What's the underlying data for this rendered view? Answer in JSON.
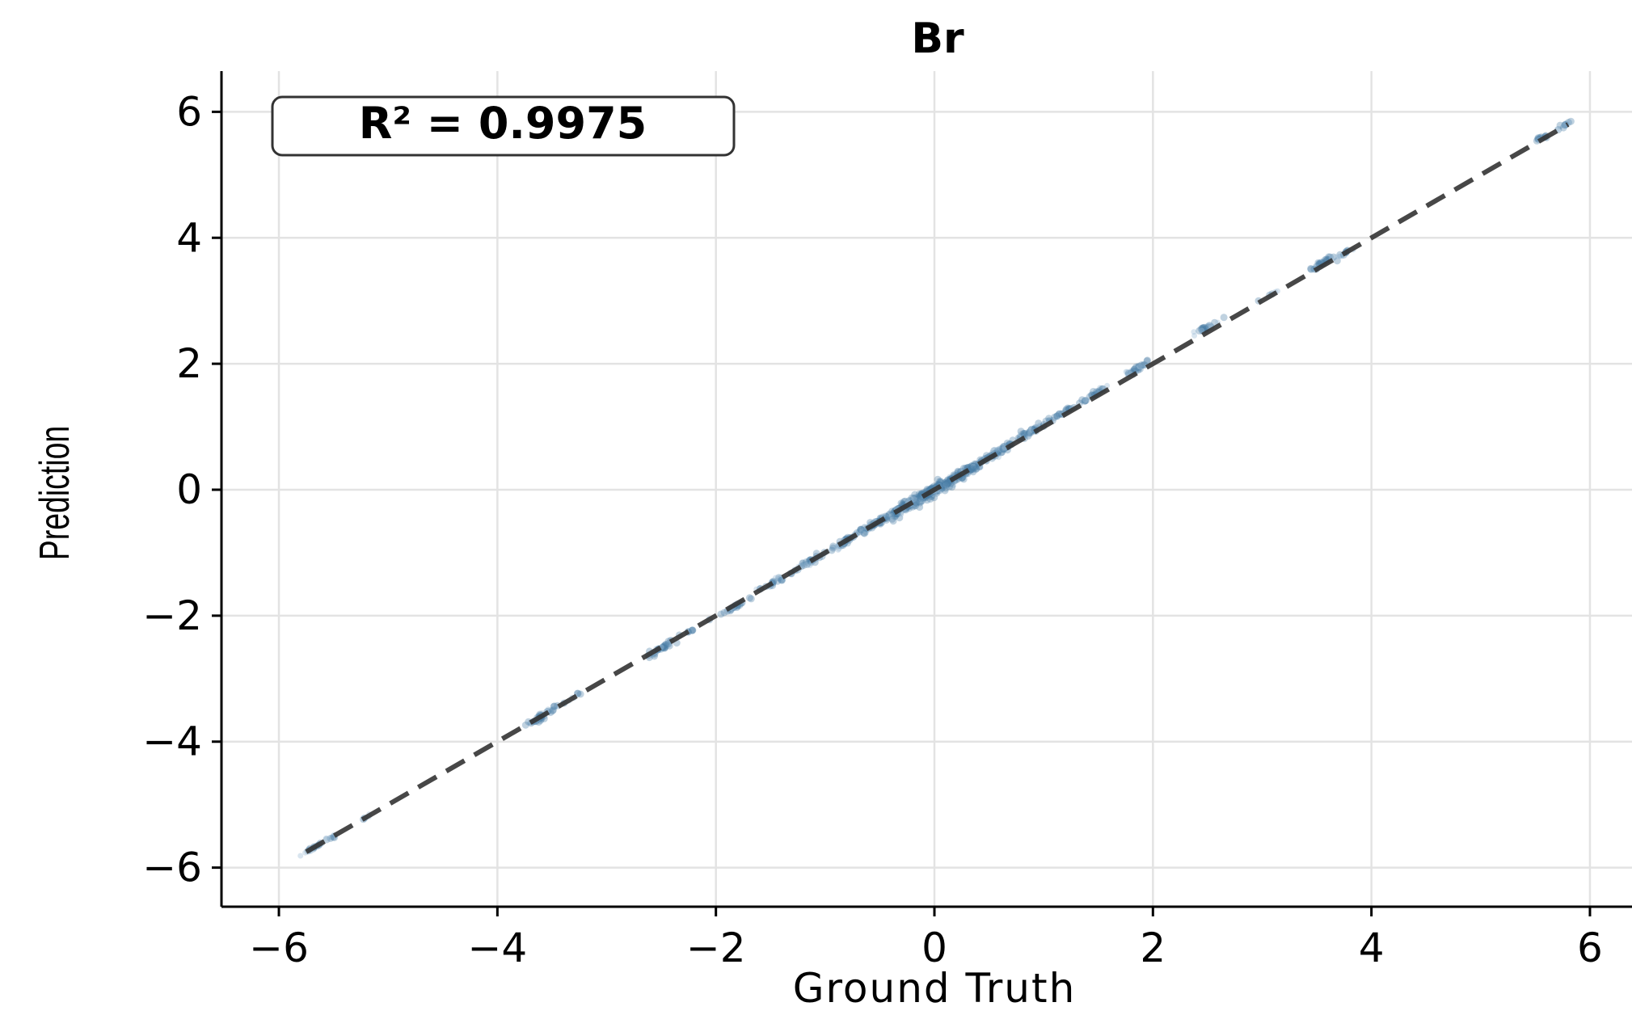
{
  "chart_data": {
    "type": "scatter",
    "title": "Br",
    "xlabel": "Ground Truth",
    "ylabel": "Prediction",
    "xlim": [
      -6.2,
      6.2
    ],
    "ylim": [
      -6.3,
      6.3
    ],
    "xticks": [
      -6,
      -4,
      -2,
      0,
      2,
      4,
      6
    ],
    "yticks": [
      -6,
      -4,
      -2,
      0,
      2,
      4,
      6
    ],
    "xtick_labels": [
      "−6",
      "−4",
      "−2",
      "0",
      "2",
      "4",
      "6"
    ],
    "ytick_labels": [
      "−6",
      "−4",
      "−2",
      "0",
      "2",
      "4",
      "6"
    ],
    "grid": true,
    "annotation": "R² = 0.9975",
    "reference_line": {
      "style": "dashed",
      "x": [
        -5.75,
        5.8
      ],
      "y": [
        -5.75,
        5.8
      ]
    },
    "series": [
      {
        "color": "#4a7fa7",
        "clusters": [
          {
            "x": -5.7,
            "y": -5.7,
            "count": 12,
            "spread": 0.05
          },
          {
            "x": -5.55,
            "y": -5.55,
            "count": 10,
            "spread": 0.05
          },
          {
            "x": -5.2,
            "y": -5.2,
            "count": 4,
            "spread": 0.04
          },
          {
            "x": -3.6,
            "y": -3.6,
            "count": 40,
            "spread": 0.08
          },
          {
            "x": -3.3,
            "y": -3.3,
            "count": 6,
            "spread": 0.05
          },
          {
            "x": -2.5,
            "y": -2.52,
            "count": 40,
            "spread": 0.07
          },
          {
            "x": -2.2,
            "y": -2.2,
            "count": 5,
            "spread": 0.05
          },
          {
            "x": -1.85,
            "y": -1.88,
            "count": 25,
            "spread": 0.06
          },
          {
            "x": -1.45,
            "y": -1.45,
            "count": 25,
            "spread": 0.07
          },
          {
            "x": -1.15,
            "y": -1.15,
            "count": 30,
            "spread": 0.07
          },
          {
            "x": -0.85,
            "y": -0.85,
            "count": 40,
            "spread": 0.08
          },
          {
            "x": -0.55,
            "y": -0.55,
            "count": 60,
            "spread": 0.1
          },
          {
            "x": -0.25,
            "y": -0.25,
            "count": 120,
            "spread": 0.12
          },
          {
            "x": 0.0,
            "y": 0.0,
            "count": 160,
            "spread": 0.12
          },
          {
            "x": 0.3,
            "y": 0.3,
            "count": 80,
            "spread": 0.1
          },
          {
            "x": 0.6,
            "y": 0.62,
            "count": 60,
            "spread": 0.08
          },
          {
            "x": 0.9,
            "y": 0.95,
            "count": 40,
            "spread": 0.07
          },
          {
            "x": 1.15,
            "y": 1.2,
            "count": 25,
            "spread": 0.06
          },
          {
            "x": 1.45,
            "y": 1.5,
            "count": 25,
            "spread": 0.06
          },
          {
            "x": 1.85,
            "y": 1.92,
            "count": 30,
            "spread": 0.06
          },
          {
            "x": 2.5,
            "y": 2.58,
            "count": 30,
            "spread": 0.06
          },
          {
            "x": 3.1,
            "y": 3.12,
            "count": 5,
            "spread": 0.04
          },
          {
            "x": 3.55,
            "y": 3.6,
            "count": 30,
            "spread": 0.06
          },
          {
            "x": 3.75,
            "y": 3.75,
            "count": 12,
            "spread": 0.05
          },
          {
            "x": 5.55,
            "y": 5.58,
            "count": 12,
            "spread": 0.05
          },
          {
            "x": 5.75,
            "y": 5.77,
            "count": 12,
            "spread": 0.04
          }
        ]
      }
    ]
  }
}
